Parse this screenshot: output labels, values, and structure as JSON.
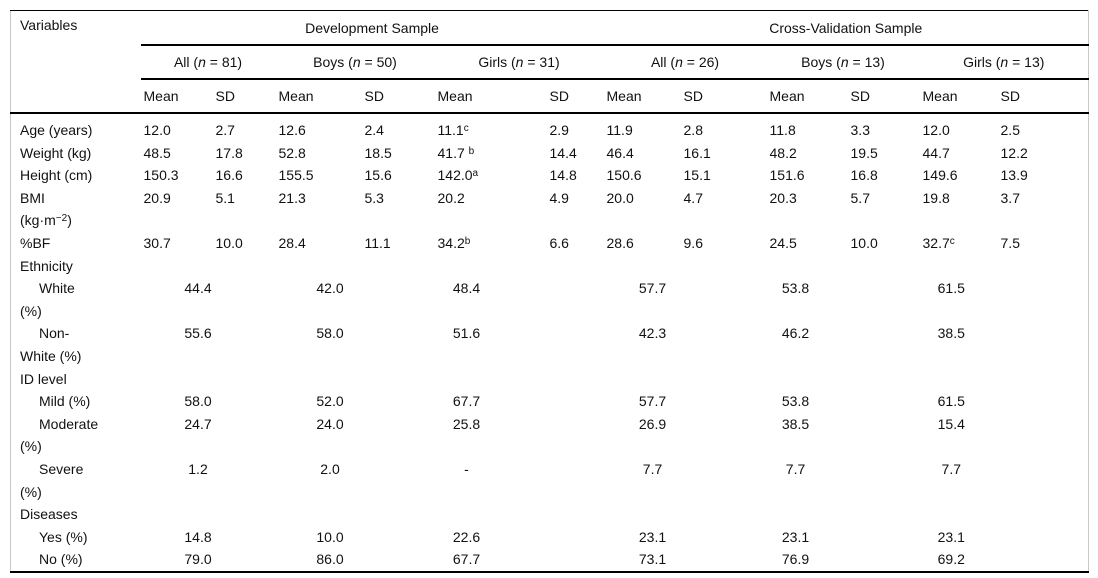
{
  "colors": {
    "rule": "#000000",
    "frame": "#c9c9c9",
    "text": "#111111",
    "background": "#ffffff"
  },
  "table": {
    "corner_label": "Variables",
    "groups": [
      {
        "label": "Development Sample",
        "subgroups": [
          "All ({i:n} = 81)",
          "Boys ({i:n} = 50)",
          "Girls ({i:n} = 31)"
        ]
      },
      {
        "label": "Cross-Validation Sample",
        "subgroups": [
          "All ({i:n} = 26)",
          "Boys ({i:n} = 13)",
          "Girls ({i:n} = 13)"
        ]
      }
    ],
    "stat_headers": [
      "Mean",
      "SD"
    ],
    "rows": [
      {
        "label_lines": [
          "Age (years)"
        ],
        "indent": false,
        "type": "meansd",
        "values": [
          "12.0",
          "2.7",
          "12.6",
          "2.4",
          "11.1{s:c}",
          "2.9",
          "11.9",
          "2.8",
          "11.8",
          "3.3",
          "12.0",
          "2.5"
        ]
      },
      {
        "label_lines": [
          "Weight (kg)"
        ],
        "indent": false,
        "type": "meansd",
        "values": [
          "48.5",
          "17.8",
          "52.8",
          "18.5",
          "41.7 {s:b}",
          "14.4",
          "46.4",
          "16.1",
          "48.2",
          "19.5",
          "44.7",
          "12.2"
        ]
      },
      {
        "label_lines": [
          "Height (cm)"
        ],
        "indent": false,
        "type": "meansd",
        "values": [
          "150.3",
          "16.6",
          "155.5",
          "15.6",
          "142.0{s:a}",
          "14.8",
          "150.6",
          "15.1",
          "151.6",
          "16.8",
          "149.6",
          "13.9"
        ]
      },
      {
        "label_lines": [
          "BMI",
          "(kg·m{s:−2})"
        ],
        "indent": false,
        "type": "meansd",
        "values": [
          "20.9",
          "5.1",
          "21.3",
          "5.3",
          "20.2",
          "4.9",
          "20.0",
          "4.7",
          "20.3",
          "5.7",
          "19.8",
          "3.7"
        ]
      },
      {
        "label_lines": [
          "%BF"
        ],
        "indent": false,
        "type": "meansd",
        "values": [
          "30.7",
          "10.0",
          "28.4",
          "11.1",
          "34.2{s:b}",
          "6.6",
          "28.6",
          "9.6",
          "24.5",
          "10.0",
          "32.7{s:c}",
          "7.5"
        ]
      },
      {
        "label_lines": [
          "Ethnicity"
        ],
        "indent": false,
        "type": "section",
        "values": []
      },
      {
        "label_lines": [
          "White",
          "(%)"
        ],
        "indent": true,
        "type": "pct",
        "values": [
          "44.4",
          "42.0",
          "48.4",
          "57.7",
          "53.8",
          "61.5"
        ]
      },
      {
        "label_lines": [
          "Non-",
          "White (%)"
        ],
        "indent": true,
        "type": "pct",
        "values": [
          "55.6",
          "58.0",
          "51.6",
          "42.3",
          "46.2",
          "38.5"
        ]
      },
      {
        "label_lines": [
          "ID level"
        ],
        "indent": false,
        "type": "section",
        "values": []
      },
      {
        "label_lines": [
          "Mild (%)"
        ],
        "indent": true,
        "type": "pct",
        "values": [
          "58.0",
          "52.0",
          "67.7",
          "57.7",
          "53.8",
          "61.5"
        ]
      },
      {
        "label_lines": [
          "Moderate",
          "(%)"
        ],
        "indent": true,
        "type": "pct",
        "values": [
          "24.7",
          "24.0",
          "25.8",
          "26.9",
          "38.5",
          "15.4"
        ]
      },
      {
        "label_lines": [
          "Severe",
          "(%)"
        ],
        "indent": true,
        "type": "pct",
        "values": [
          "1.2",
          "2.0",
          "-",
          "7.7",
          "7.7",
          "7.7"
        ]
      },
      {
        "label_lines": [
          "Diseases"
        ],
        "indent": false,
        "type": "section",
        "values": []
      },
      {
        "label_lines": [
          "Yes (%)"
        ],
        "indent": true,
        "type": "pct",
        "values": [
          "14.8",
          "10.0",
          "22.6",
          "23.1",
          "23.1",
          "23.1"
        ]
      },
      {
        "label_lines": [
          "No (%)"
        ],
        "indent": true,
        "type": "pct",
        "values": [
          "79.0",
          "86.0",
          "67.7",
          "73.1",
          "76.9",
          "69.2"
        ]
      }
    ]
  }
}
